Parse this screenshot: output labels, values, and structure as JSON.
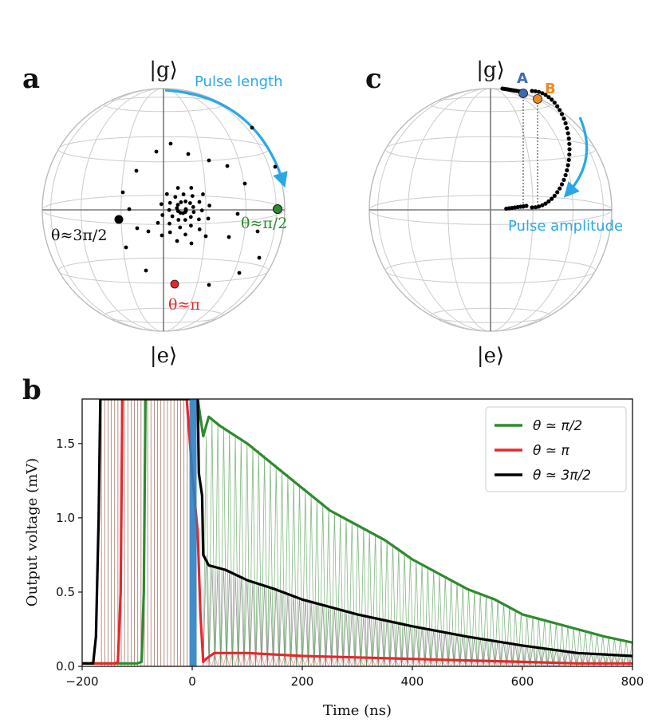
{
  "colors": {
    "blue_annotation": "#29a8e8",
    "green": "#2e8b2e",
    "red": "#e8262b",
    "black": "#000000",
    "point_A": "#3b6bb0",
    "point_B": "#ef8a22",
    "sphere_grid": "#cccccc"
  },
  "panel_a": {
    "letter": "a",
    "top_label": "|g⟩",
    "bottom_label": "|e⟩",
    "arrow_label": "Pulse length",
    "label_right": "θ≈π/2",
    "label_left": "θ≈3π/2",
    "label_bottom": "θ≈π"
  },
  "panel_c": {
    "letter": "c",
    "top_label": "|g⟩",
    "bottom_label": "|e⟩",
    "arrow_label": "Pulse amplitude",
    "point_A_label": "A",
    "point_B_label": "B"
  },
  "panel_b": {
    "letter": "b"
  },
  "chart_data": {
    "type": "line",
    "xlabel": "Time (ns)",
    "ylabel": "Output voltage (mV)",
    "xlim": [
      -200,
      800
    ],
    "ylim": [
      0,
      1.8
    ],
    "xticks": [
      -200,
      0,
      200,
      400,
      600,
      800
    ],
    "yticks": [
      0.0,
      0.5,
      1.0,
      1.5
    ],
    "xtick_labels": [
      "−200",
      "0",
      "200",
      "400",
      "600",
      "800"
    ],
    "ytick_labels": [
      "0.0",
      "0.5",
      "1.0",
      "1.5"
    ],
    "legend_position": "top-right",
    "series": [
      {
        "name": "θ ≃ π/2",
        "color": "#2e8b2e",
        "x": [
          -200,
          -180,
          -100,
          -92,
          -88,
          -85,
          10,
          20,
          30,
          50,
          100,
          150,
          200,
          250,
          300,
          350,
          400,
          450,
          500,
          550,
          600,
          650,
          700,
          750,
          800
        ],
        "y": [
          0.02,
          0.02,
          0.02,
          0.03,
          0.5,
          1.8,
          1.8,
          1.55,
          1.68,
          1.62,
          1.5,
          1.35,
          1.2,
          1.05,
          0.95,
          0.85,
          0.72,
          0.62,
          0.52,
          0.45,
          0.35,
          0.3,
          0.25,
          0.2,
          0.16
        ]
      },
      {
        "name": "θ ≃ π",
        "color": "#e8262b",
        "x": [
          -200,
          -140,
          -135,
          -130,
          -127,
          -10,
          0,
          10,
          15,
          20,
          25,
          40,
          100,
          200,
          300,
          400,
          500,
          600,
          700,
          800
        ],
        "y": [
          0.02,
          0.02,
          0.03,
          0.5,
          1.8,
          1.8,
          1.3,
          0.9,
          0.35,
          0.03,
          0.05,
          0.09,
          0.09,
          0.07,
          0.06,
          0.05,
          0.04,
          0.03,
          0.02,
          0.02
        ]
      },
      {
        "name": "θ ≃ 3π/2",
        "color": "#000000",
        "x": [
          -200,
          -180,
          -175,
          -170,
          -167,
          10,
          12,
          18,
          20,
          30,
          60,
          100,
          150,
          200,
          300,
          400,
          500,
          600,
          700,
          800
        ],
        "y": [
          0.02,
          0.02,
          0.2,
          1.0,
          1.8,
          1.8,
          1.3,
          1.15,
          0.75,
          0.68,
          0.65,
          0.58,
          0.52,
          0.45,
          0.35,
          0.27,
          0.2,
          0.14,
          0.09,
          0.07
        ]
      }
    ]
  }
}
